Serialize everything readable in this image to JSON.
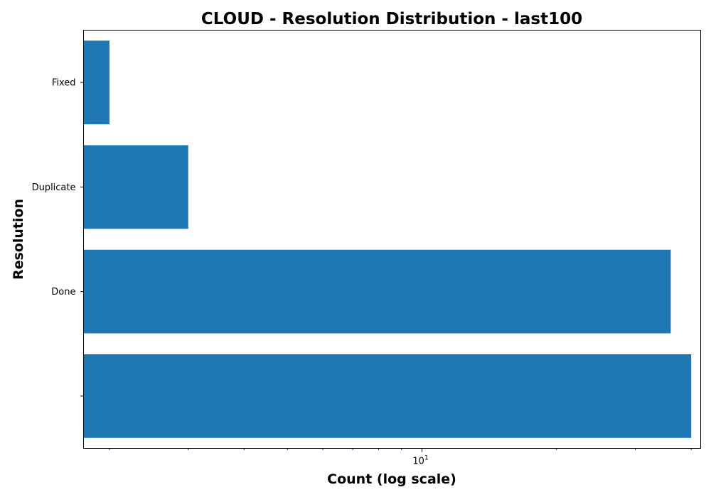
{
  "chart_data": {
    "type": "bar",
    "orientation": "horizontal",
    "title": "CLOUD - Resolution Distribution - last100",
    "xlabel": "Count (log scale)",
    "ylabel": "Resolution",
    "x_scale": "log",
    "x_tick_labels": [
      {
        "value": 10,
        "base": "10",
        "exponent": "1"
      }
    ],
    "xlim": [
      1.75,
      42
    ],
    "categories": [
      "",
      "Done",
      "Duplicate",
      "Fixed"
    ],
    "values": [
      40,
      36,
      3,
      2
    ],
    "grid": false,
    "legend": "none",
    "bar_color": "#1f77b4"
  }
}
